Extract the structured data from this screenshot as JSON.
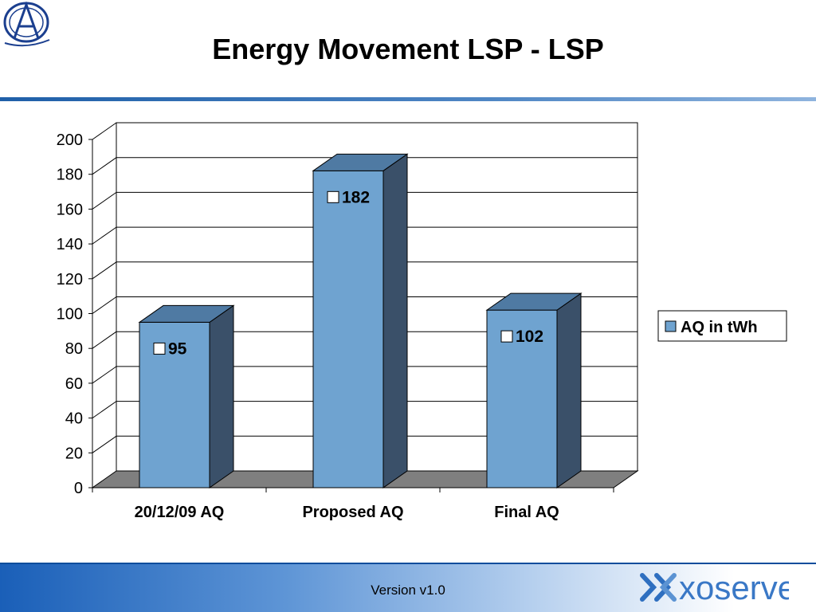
{
  "page": {
    "title": "Energy Movement LSP - LSP",
    "footer_version": "Version v1.0",
    "logo_icon": "a-monogram-logo-icon",
    "brand_logo": "xoserve-logo",
    "brand_text": "xoserve"
  },
  "colors": {
    "bar_front": "#6fa3d0",
    "bar_top": "#4f7aa3",
    "bar_side": "#3a5069",
    "floor": "#7f7f7f",
    "title_rule": "#1f5fa8"
  },
  "chart_data": {
    "type": "bar",
    "categories": [
      "20/12/09 AQ",
      "Proposed AQ",
      "Final AQ"
    ],
    "series": [
      {
        "name": "AQ in tWh",
        "values": [
          95,
          182,
          102
        ]
      }
    ],
    "data_labels": [
      "95",
      "182",
      "102"
    ],
    "yticks": [
      0,
      20,
      40,
      60,
      80,
      100,
      120,
      140,
      160,
      180,
      200
    ],
    "ylim": [
      0,
      200
    ],
    "title": "",
    "xlabel": "",
    "ylabel": "",
    "grid": true,
    "legend": {
      "position": "right",
      "entries": [
        "AQ in tWh"
      ]
    },
    "three_d": true
  }
}
